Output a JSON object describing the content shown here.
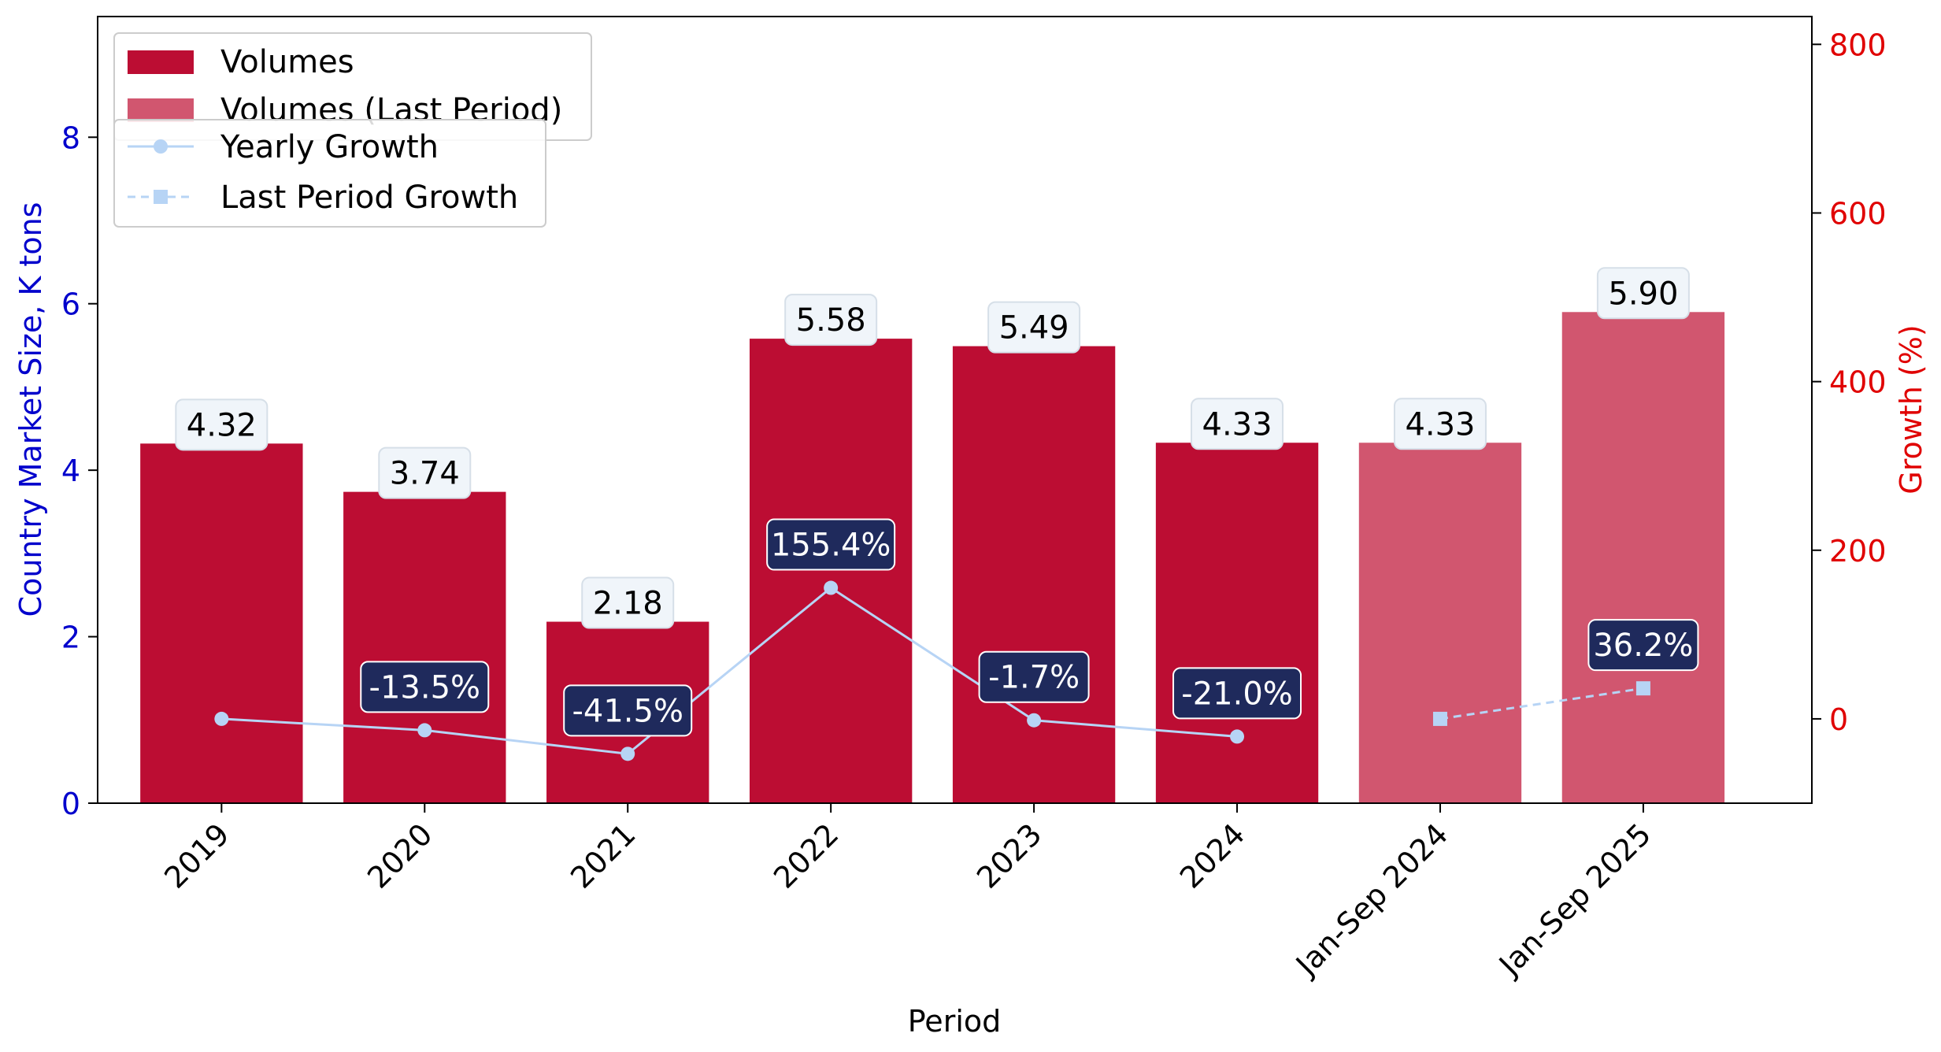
{
  "chart_data": {
    "type": "bar",
    "categories": [
      "2019",
      "2020",
      "2021",
      "2022",
      "2023",
      "2024",
      "Jan-Sep 2024",
      "Jan-Sep 2025"
    ],
    "xlabel": "Period",
    "ylabel": "Country Market Size, K tons",
    "y2label": "Growth (%)",
    "ylim": [
      0,
      9.45
    ],
    "y2lim": [
      -100,
      833
    ],
    "yticks": [
      0,
      2,
      4,
      6,
      8
    ],
    "y2ticks": [
      0,
      200,
      400,
      600,
      800
    ],
    "series": [
      {
        "name": "Volumes",
        "kind": "bar",
        "color": "#bc0d33",
        "values": [
          4.32,
          3.74,
          2.18,
          5.58,
          5.49,
          4.33,
          null,
          null
        ],
        "labels": [
          "4.32",
          "3.74",
          "2.18",
          "5.58",
          "5.49",
          "4.33",
          null,
          null
        ]
      },
      {
        "name": "Volumes (Last Period)",
        "kind": "bar",
        "color": "#d1566f",
        "values": [
          null,
          null,
          null,
          null,
          null,
          null,
          4.33,
          5.9
        ],
        "labels": [
          null,
          null,
          null,
          null,
          null,
          null,
          "4.33",
          "5.90"
        ]
      },
      {
        "name": "Yearly Growth",
        "kind": "line",
        "axis": "right",
        "marker": "circle",
        "color": "#b7d4f5",
        "values": [
          0,
          -13.5,
          -41.5,
          155.4,
          -1.7,
          -21.0,
          null,
          null
        ],
        "labels": [
          null,
          "-13.5%",
          "-41.5%",
          "155.4%",
          "-1.7%",
          "-21.0%",
          null,
          null
        ]
      },
      {
        "name": "Last Period Growth",
        "kind": "line",
        "axis": "right",
        "marker": "square",
        "dashed": true,
        "color": "#b7d4f5",
        "values": [
          null,
          null,
          null,
          null,
          null,
          null,
          0,
          36.2
        ],
        "labels": [
          null,
          null,
          null,
          null,
          null,
          null,
          null,
          "36.2%"
        ]
      }
    ],
    "legend": {
      "position": "top-left"
    },
    "colors": {
      "left_axis": "#0000cc",
      "right_axis": "#e00000",
      "value_label_bg": "#f0f5fa",
      "growth_label_bg": "#1f2a5c"
    }
  }
}
